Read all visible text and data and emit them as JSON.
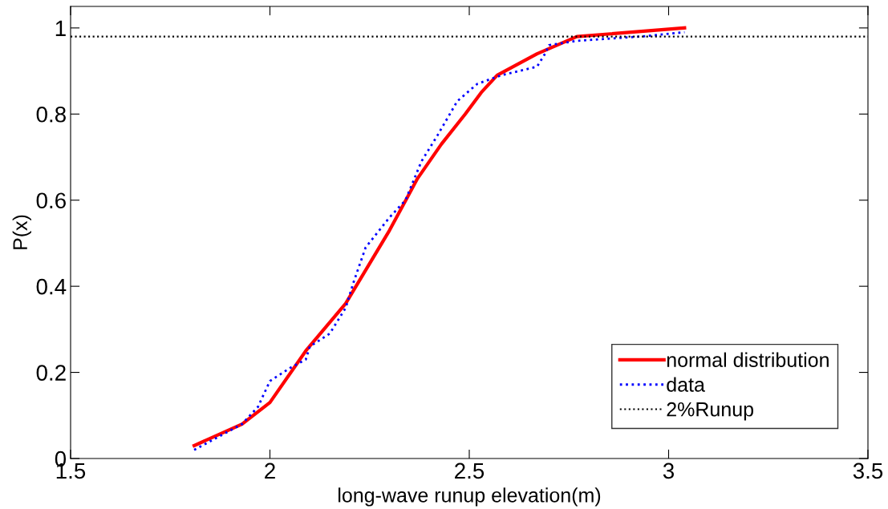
{
  "chart_data": {
    "type": "line",
    "xlabel": "long-wave runup elevation(m)",
    "ylabel": "P(x)",
    "xlim": [
      1.5,
      3.5
    ],
    "xticks": [
      1.5,
      2,
      2.5,
      3,
      3.5
    ],
    "ylim": [
      0,
      1.05
    ],
    "yticks": [
      0,
      0.2,
      0.4,
      0.6,
      0.8,
      1
    ],
    "grid": false,
    "legend": "bottom right",
    "series": [
      {
        "name": "normal distribution",
        "color": "#ff0000",
        "line_style": "solid",
        "x": [
          1.81,
          1.93,
          2.0,
          2.09,
          2.19,
          2.3,
          2.37,
          2.43,
          2.49,
          2.53,
          2.57,
          2.67,
          2.77,
          3.04
        ],
        "values": [
          0.03,
          0.08,
          0.13,
          0.25,
          0.36,
          0.53,
          0.65,
          0.73,
          0.8,
          0.85,
          0.89,
          0.94,
          0.98,
          1.0
        ]
      },
      {
        "name": "data",
        "color": "#0000ff",
        "line_style": "dotted",
        "x": [
          1.81,
          1.93,
          1.97,
          2.0,
          2.05,
          2.09,
          2.1,
          2.15,
          2.19,
          2.21,
          2.24,
          2.3,
          2.34,
          2.38,
          2.42,
          2.47,
          2.52,
          2.58,
          2.67,
          2.69,
          2.7,
          2.77,
          2.93,
          3.04
        ],
        "values": [
          0.02,
          0.08,
          0.12,
          0.18,
          0.21,
          0.23,
          0.26,
          0.29,
          0.35,
          0.41,
          0.49,
          0.56,
          0.6,
          0.69,
          0.75,
          0.83,
          0.87,
          0.89,
          0.91,
          0.94,
          0.96,
          0.97,
          0.98,
          0.99
        ]
      }
    ],
    "ref_lines": [
      {
        "axis": "y",
        "value": 0.98,
        "label": "2%Runup",
        "color": "#000000",
        "line_style": "dotted"
      }
    ]
  }
}
